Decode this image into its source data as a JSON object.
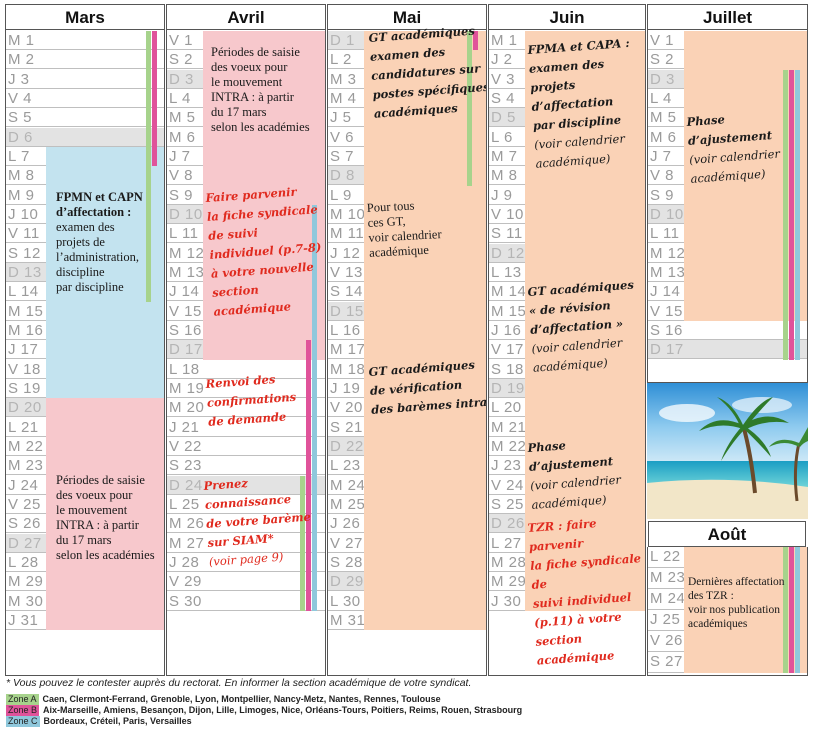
{
  "months": [
    {
      "name": "Mars",
      "days": [
        [
          "M",
          "1"
        ],
        [
          "M",
          "2"
        ],
        [
          "J",
          "3"
        ],
        [
          "V",
          "4"
        ],
        [
          "S",
          "5"
        ],
        [
          "D",
          "6"
        ],
        [
          "L",
          "7"
        ],
        [
          "M",
          "8"
        ],
        [
          "M",
          "9"
        ],
        [
          "J",
          "10"
        ],
        [
          "V",
          "11"
        ],
        [
          "S",
          "12"
        ],
        [
          "D",
          "13"
        ],
        [
          "L",
          "14"
        ],
        [
          "M",
          "15"
        ],
        [
          "M",
          "16"
        ],
        [
          "J",
          "17"
        ],
        [
          "V",
          "18"
        ],
        [
          "S",
          "19"
        ],
        [
          "D",
          "20"
        ],
        [
          "L",
          "21"
        ],
        [
          "M",
          "22"
        ],
        [
          "M",
          "23"
        ],
        [
          "J",
          "24"
        ],
        [
          "V",
          "25"
        ],
        [
          "S",
          "26"
        ],
        [
          "D",
          "27"
        ],
        [
          "L",
          "28"
        ],
        [
          "M",
          "29"
        ],
        [
          "M",
          "30"
        ],
        [
          "J",
          "31"
        ]
      ]
    },
    {
      "name": "Avril",
      "days": [
        [
          "V",
          "1"
        ],
        [
          "S",
          "2"
        ],
        [
          "D",
          "3"
        ],
        [
          "L",
          "4"
        ],
        [
          "M",
          "5"
        ],
        [
          "M",
          "6"
        ],
        [
          "J",
          "7"
        ],
        [
          "V",
          "8"
        ],
        [
          "S",
          "9"
        ],
        [
          "D",
          "10"
        ],
        [
          "L",
          "11"
        ],
        [
          "M",
          "12"
        ],
        [
          "M",
          "13"
        ],
        [
          "J",
          "14"
        ],
        [
          "V",
          "15"
        ],
        [
          "S",
          "16"
        ],
        [
          "D",
          "17"
        ],
        [
          "L",
          "18"
        ],
        [
          "M",
          "19"
        ],
        [
          "M",
          "20"
        ],
        [
          "J",
          "21"
        ],
        [
          "V",
          "22"
        ],
        [
          "S",
          "23"
        ],
        [
          "D",
          "24"
        ],
        [
          "L",
          "25"
        ],
        [
          "M",
          "26"
        ],
        [
          "M",
          "27"
        ],
        [
          "J",
          "28"
        ],
        [
          "V",
          "29"
        ],
        [
          "S",
          "30"
        ]
      ]
    },
    {
      "name": "Mai",
      "days": [
        [
          "D",
          "1"
        ],
        [
          "L",
          "2"
        ],
        [
          "M",
          "3"
        ],
        [
          "M",
          "4"
        ],
        [
          "J",
          "5"
        ],
        [
          "V",
          "6"
        ],
        [
          "S",
          "7"
        ],
        [
          "D",
          "8"
        ],
        [
          "L",
          "9"
        ],
        [
          "M",
          "10"
        ],
        [
          "M",
          "11"
        ],
        [
          "J",
          "12"
        ],
        [
          "V",
          "13"
        ],
        [
          "S",
          "14"
        ],
        [
          "D",
          "15"
        ],
        [
          "L",
          "16"
        ],
        [
          "M",
          "17"
        ],
        [
          "M",
          "18"
        ],
        [
          "J",
          "19"
        ],
        [
          "V",
          "20"
        ],
        [
          "S",
          "21"
        ],
        [
          "D",
          "22"
        ],
        [
          "L",
          "23"
        ],
        [
          "M",
          "24"
        ],
        [
          "M",
          "25"
        ],
        [
          "J",
          "26"
        ],
        [
          "V",
          "27"
        ],
        [
          "S",
          "28"
        ],
        [
          "D",
          "29"
        ],
        [
          "L",
          "30"
        ],
        [
          "M",
          "31"
        ]
      ]
    },
    {
      "name": "Juin",
      "days": [
        [
          "M",
          "1"
        ],
        [
          "J",
          "2"
        ],
        [
          "V",
          "3"
        ],
        [
          "S",
          "4"
        ],
        [
          "D",
          "5"
        ],
        [
          "L",
          "6"
        ],
        [
          "M",
          "7"
        ],
        [
          "M",
          "8"
        ],
        [
          "J",
          "9"
        ],
        [
          "V",
          "10"
        ],
        [
          "S",
          "11"
        ],
        [
          "D",
          "12"
        ],
        [
          "L",
          "13"
        ],
        [
          "M",
          "14"
        ],
        [
          "M",
          "15"
        ],
        [
          "J",
          "16"
        ],
        [
          "V",
          "17"
        ],
        [
          "S",
          "18"
        ],
        [
          "D",
          "19"
        ],
        [
          "L",
          "20"
        ],
        [
          "M",
          "21"
        ],
        [
          "M",
          "22"
        ],
        [
          "J",
          "23"
        ],
        [
          "V",
          "24"
        ],
        [
          "S",
          "25"
        ],
        [
          "D",
          "26"
        ],
        [
          "L",
          "27"
        ],
        [
          "M",
          "28"
        ],
        [
          "M",
          "29"
        ],
        [
          "J",
          "30"
        ]
      ]
    },
    {
      "name": "Juillet",
      "days": [
        [
          "V",
          "1"
        ],
        [
          "S",
          "2"
        ],
        [
          "D",
          "3"
        ],
        [
          "L",
          "4"
        ],
        [
          "M",
          "5"
        ],
        [
          "M",
          "6"
        ],
        [
          "J",
          "7"
        ],
        [
          "V",
          "8"
        ],
        [
          "S",
          "9"
        ],
        [
          "D",
          "10"
        ],
        [
          "L",
          "11"
        ],
        [
          "M",
          "12"
        ],
        [
          "M",
          "13"
        ],
        [
          "J",
          "14"
        ],
        [
          "V",
          "15"
        ],
        [
          "S",
          "16"
        ],
        [
          "D",
          "17"
        ]
      ]
    }
  ],
  "aout": {
    "name": "Août",
    "days": [
      [
        "L",
        "22"
      ],
      [
        "M",
        "23"
      ],
      [
        "M",
        "24"
      ],
      [
        "J",
        "25"
      ],
      [
        "V",
        "26"
      ],
      [
        "S",
        "27"
      ]
    ]
  },
  "notes": {
    "mars_fpmn_1": "FPMN et CAPN",
    "mars_fpmn_2": "d’affectation :",
    "mars_fpmn_3": "examen des",
    "mars_fpmn_4": "projets de",
    "mars_fpmn_5": "l’administration,",
    "mars_fpmn_6": "discipline",
    "mars_fpmn_7": "par discipline",
    "mars_periodes_1": "Périodes de saisie",
    "mars_periodes_2": "des voeux pour",
    "mars_periodes_3": "le mouvement",
    "mars_periodes_4": "INTRA : à partir",
    "mars_periodes_5": "du 17 mars",
    "mars_periodes_6": "selon les académies",
    "avril_periodes_1": "Périodes de saisie",
    "avril_periodes_2": "des voeux pour",
    "avril_periodes_3": "le mouvement",
    "avril_periodes_4": "INTRA : à partir",
    "avril_periodes_5": "du 17 mars",
    "avril_periodes_6": "selon les académies",
    "avril_fiche_1": "Faire parvenir",
    "avril_fiche_2": "la fiche syndicale",
    "avril_fiche_3": "de suivi",
    "avril_fiche_4": "individuel (p.7-8)",
    "avril_fiche_5": "à votre nouvelle",
    "avril_fiche_6": "section",
    "avril_fiche_7": "académique",
    "avril_renvoi_1": "Renvoi des",
    "avril_renvoi_2": "confirmations",
    "avril_renvoi_3": "de demande",
    "avril_bareme_1": "Prenez",
    "avril_bareme_2": "connaissance",
    "avril_bareme_3": "de votre barème",
    "avril_bareme_4": "sur SIAM*",
    "avril_bareme_5": "(voir page 9)",
    "mai_gt_1": "GT académiques",
    "mai_gt_2": "examen des",
    "mai_gt_3": "candidatures sur",
    "mai_gt_4": "postes spécifiques",
    "mai_gt_5": "académiques",
    "mai_tous_1": "Pour tous",
    "mai_tous_2": "ces GT,",
    "mai_tous_3": "voir calendrier",
    "mai_tous_4": "académique",
    "mai_verif_1": "GT académiques",
    "mai_verif_2": "de vérification",
    "mai_verif_3": "des barèmes intra",
    "juin_fpma_1": "FPMA et CAPA :",
    "juin_fpma_2": "examen des projets",
    "juin_fpma_3": "d’affectation",
    "juin_fpma_4": "par discipline",
    "juin_fpma_5": "(voir calendrier",
    "juin_fpma_6": "académique)",
    "juin_revision_1": "GT académiques",
    "juin_revision_2": "« de révision",
    "juin_revision_3": "d’affectation »",
    "juin_revision_4": "(voir calendrier",
    "juin_revision_5": "académique)",
    "juin_ajust_1": "Phase d’ajustement",
    "juin_ajust_2": "(voir calendrier",
    "juin_ajust_3": "académique)",
    "juin_tzr_1": "TZR : faire parvenir",
    "juin_tzr_2": "la fiche syndicale de",
    "juin_tzr_3": "suivi individuel",
    "juin_tzr_4": "(p.11) à votre",
    "juin_tzr_5": "section académique",
    "juillet_ajust_1": "Phase d’ajustement",
    "juillet_ajust_2": "(voir calendrier",
    "juillet_ajust_3": "académique)",
    "aout_1": "Dernières affectation",
    "aout_2": "des TZR :",
    "aout_3": "voir nos publication",
    "aout_4": "académiques"
  },
  "footnote": "* Vous pouvez le contester auprès du rectorat. En informer la section académique de votre syndicat.",
  "zones": [
    {
      "tag": "Zone A",
      "color": "#a7d38c",
      "cities": "Caen, Clermont-Ferrand, Grenoble, Lyon, Montpellier, Nancy-Metz, Nantes, Rennes, Toulouse"
    },
    {
      "tag": "Zone B",
      "color": "#e0539a",
      "cities": "Aix-Marseille, Amiens, Besançon, Dijon, Lille, Limoges, Nice, Orléans-Tours, Poitiers, Reims, Rouen, Strasbourg"
    },
    {
      "tag": "Zone C",
      "color": "#8fc8dc",
      "cities": "Bordeaux, Créteil, Paris, Versailles"
    }
  ],
  "colors": {
    "pink": "#f7c8cc",
    "blue": "#c3e3ef",
    "orange": "#fad2b6",
    "weekend": "#e3e3e3",
    "red_text": "#e02a1e"
  },
  "icons": {
    "photo": "beach-palm-photo"
  }
}
